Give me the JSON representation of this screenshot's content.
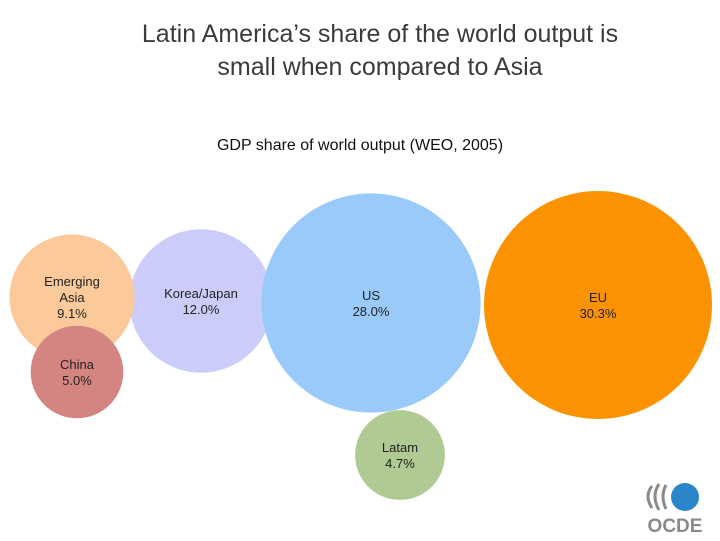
{
  "slide": {
    "title_line1": "Latin America’s share of the world output is",
    "title_line2": "small when compared to Asia"
  },
  "chart_data": {
    "type": "bubble",
    "title": "GDP share of world output (WEO, 2005)",
    "unit": "%",
    "series": [
      {
        "name": "Emerging Asia",
        "label_lines": [
          "Emerging",
          "Asia"
        ],
        "value": 9.1,
        "value_label": "9.1%",
        "color": "#fbc99a"
      },
      {
        "name": "China",
        "label_lines": [
          "China"
        ],
        "value": 5.0,
        "value_label": "5.0%",
        "color": "#d48582"
      },
      {
        "name": "Korea/Japan",
        "label_lines": [
          "Korea/Japan"
        ],
        "value": 12.0,
        "value_label": "12.0%",
        "color": "#ccccfa"
      },
      {
        "name": "US",
        "label_lines": [
          "US"
        ],
        "value": 28.0,
        "value_label": "28.0%",
        "color": "#99cafa"
      },
      {
        "name": "Latam",
        "label_lines": [
          "Latam"
        ],
        "value": 4.7,
        "value_label": "4.7%",
        "color": "#afca92"
      },
      {
        "name": "EU",
        "label_lines": [
          "EU"
        ],
        "value": 30.3,
        "value_label": "30.3%",
        "color": "#fb9202"
      }
    ]
  },
  "logo": {
    "text": "OCDE",
    "color_blue": "#2a86c8",
    "color_gray": "#8a8a8a"
  }
}
